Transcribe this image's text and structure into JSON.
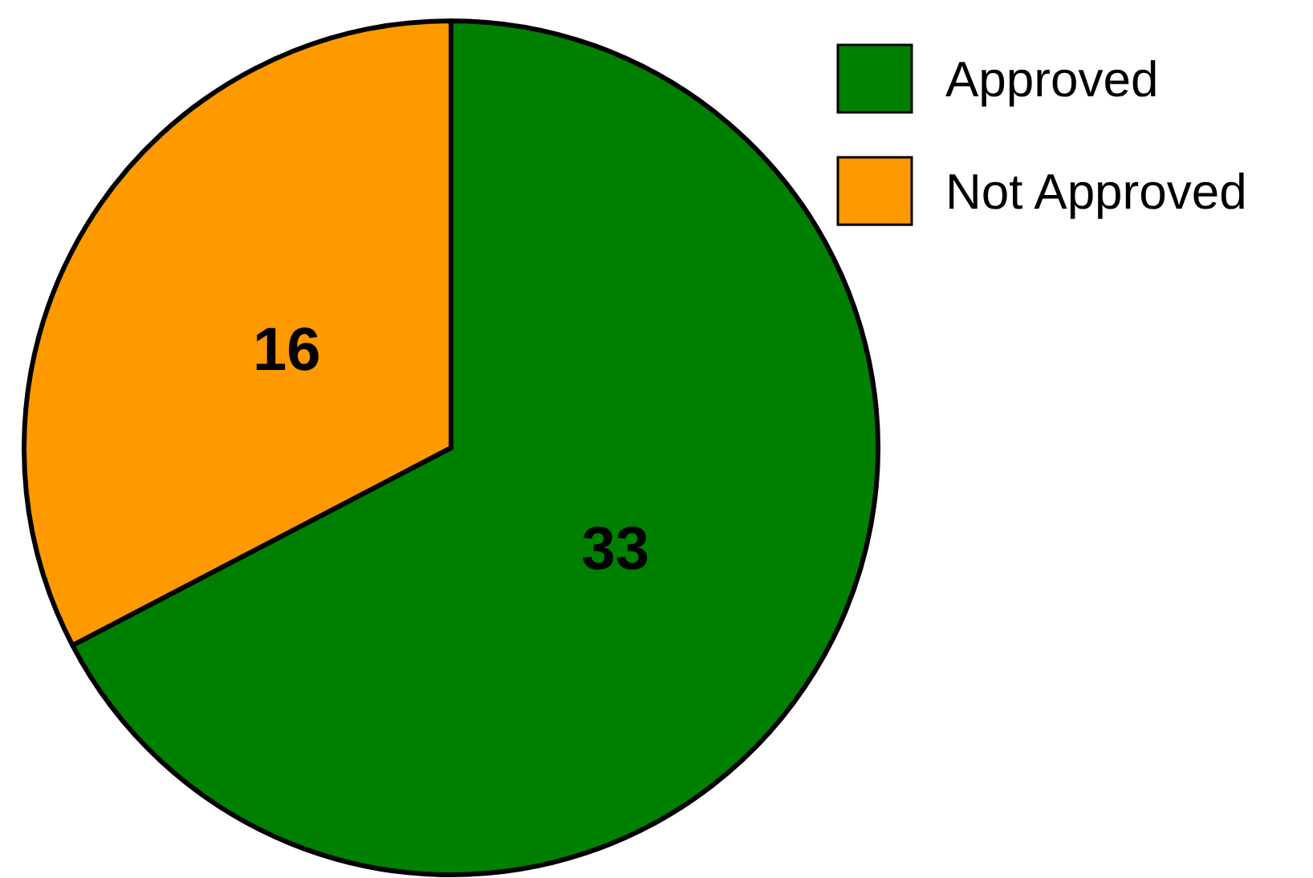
{
  "chart_data": {
    "type": "pie",
    "categories": [
      "Approved",
      "Not Approved"
    ],
    "values": [
      33,
      16
    ],
    "colors": [
      "#008000",
      "#ff9900"
    ],
    "data_labels": true,
    "legend": "top right"
  }
}
